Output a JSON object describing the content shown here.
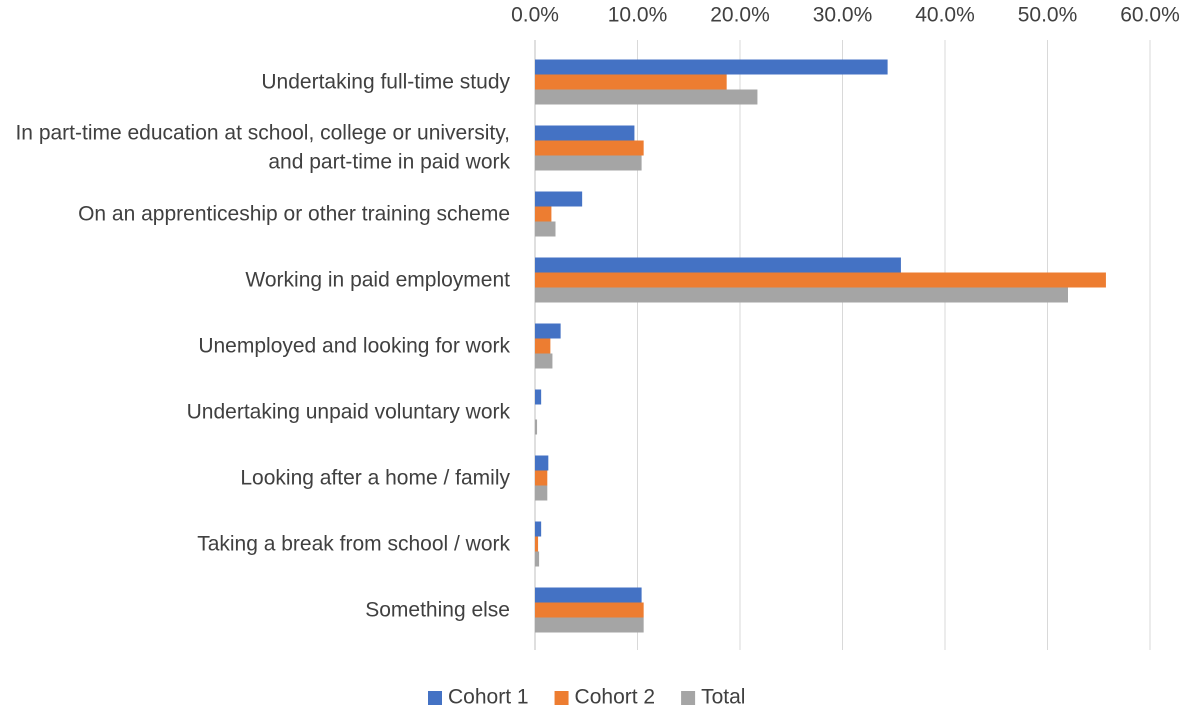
{
  "chart_data": {
    "type": "hbar",
    "categories": [
      "Undertaking full-time study",
      "In part-time education at school, college or university, and part-time in paid work",
      "On an apprenticeship or other training scheme",
      "Working in paid employment",
      "Unemployed and looking for work",
      "Undertaking unpaid voluntary work",
      "Looking after a home / family",
      "Taking a break from school / work",
      "Something else"
    ],
    "series": [
      {
        "name": "Cohort 1",
        "color": "#4472c4",
        "values": [
          34.4,
          9.7,
          4.6,
          35.7,
          2.5,
          0.6,
          1.3,
          0.6,
          10.4
        ]
      },
      {
        "name": "Cohort 2",
        "color": "#ed7d31",
        "values": [
          18.7,
          10.6,
          1.6,
          55.7,
          1.5,
          0,
          1.2,
          0.3,
          10.6
        ]
      },
      {
        "name": "Total",
        "color": "#a5a5a5",
        "values": [
          21.7,
          10.4,
          2.0,
          52.0,
          1.7,
          0.2,
          1.2,
          0.4,
          10.6
        ]
      }
    ],
    "xlim": [
      0,
      60
    ],
    "xticks": [
      {
        "value": 0,
        "label": "0.0%"
      },
      {
        "value": 10,
        "label": "10.0%"
      },
      {
        "value": 20,
        "label": "20.0%"
      },
      {
        "value": 30,
        "label": "30.0%"
      },
      {
        "value": 40,
        "label": "40.0%"
      },
      {
        "value": 50,
        "label": "50.0%"
      },
      {
        "value": 60,
        "label": "60.0%"
      }
    ],
    "grid": true,
    "legend": "bottom"
  }
}
